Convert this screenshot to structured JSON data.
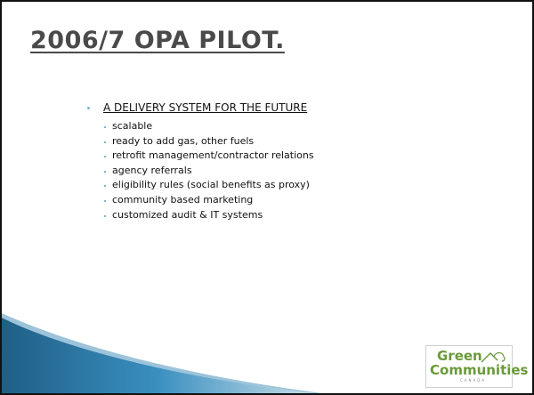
{
  "title": "2006/7 OPA PILOT.",
  "heading": "A DELIVERY SYSTEM FOR THE FUTURE",
  "items": [
    "scalable",
    "ready to add gas, other fuels",
    "retrofit management/contractor relations",
    "agency referrals",
    "eligibility rules (social benefits as proxy)",
    "community based marketing",
    "customized audit & IT systems"
  ],
  "logo": {
    "line1": "Green",
    "line2": "Communities",
    "line3": "CANADA"
  }
}
